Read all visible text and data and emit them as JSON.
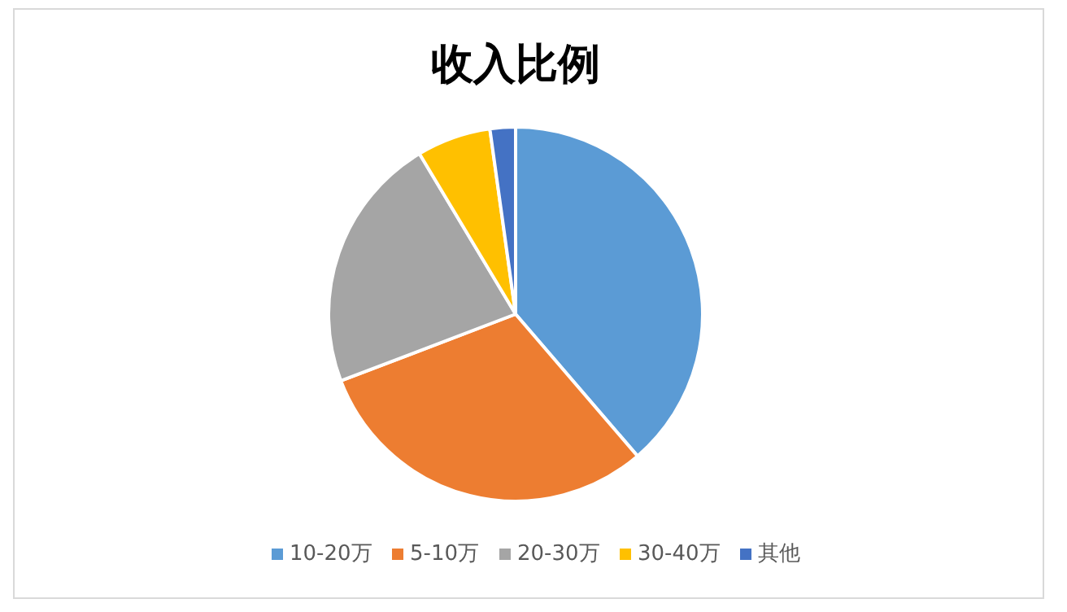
{
  "chart_data": {
    "type": "pie",
    "title": "收入比例",
    "categories": [
      "10-20万",
      "5-10万",
      "20-30万",
      "30-40万",
      "其他"
    ],
    "values": [
      38.7,
      30.5,
      22.2,
      6.4,
      2.2
    ],
    "colors": [
      "#5b9bd5",
      "#ed7d31",
      "#a5a5a5",
      "#ffc000",
      "#4472c4"
    ],
    "legend": "bottom"
  }
}
